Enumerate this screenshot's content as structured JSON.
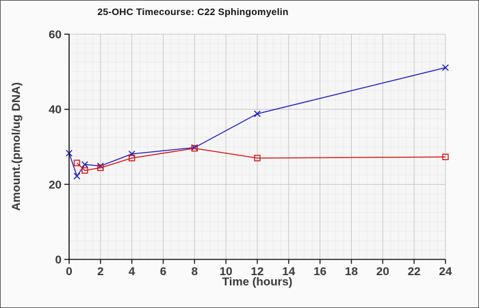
{
  "chart_data": {
    "type": "line",
    "title": "25-OHC Timecourse: C22 Sphingomyelin",
    "xlabel": "Time (hours)",
    "ylabel": "Amount.(pmol/ug DNA)",
    "xlim": [
      0,
      24
    ],
    "ylim": [
      0,
      60
    ],
    "x_tick_values": [
      0,
      2,
      4,
      6,
      8,
      10,
      12,
      14,
      16,
      18,
      20,
      22,
      24
    ],
    "x_tick_labels": [
      "0",
      "2",
      "4",
      "6",
      "8",
      "10",
      "12",
      "14",
      "16",
      "18",
      "20",
      "22",
      "24"
    ],
    "y_tick_values": [
      0,
      20,
      40,
      60
    ],
    "y_tick_labels": [
      "0",
      "20",
      "40",
      "60"
    ],
    "x_minor_step": 0.5,
    "x_major_step": 2,
    "y_minor_step": 2.5,
    "y_major_step": 20,
    "grid": true,
    "legend": false,
    "series": [
      {
        "name": "blue-x-series",
        "marker": "x",
        "color": "#2020b8",
        "x": [
          0,
          0.5,
          1,
          2,
          4,
          8,
          12,
          24
        ],
        "y": [
          28.3,
          22.2,
          25.3,
          24.9,
          28.1,
          29.8,
          38.8,
          51.1
        ]
      },
      {
        "name": "red-square-series",
        "marker": "square",
        "color": "#d41414",
        "x": [
          0.5,
          1,
          2,
          4,
          8,
          12,
          24
        ],
        "y": [
          25.7,
          23.7,
          24.4,
          27.0,
          29.6,
          27.0,
          27.3
        ]
      }
    ],
    "style": {
      "figure_bg": "#fafafa",
      "plot_bg": "#f6f6f6",
      "grid_minor_color": "#ececec",
      "grid_major_color": "#c6c6c6",
      "axis_color": "#1a1a1a",
      "tick_label_color": "#3a3a3a"
    }
  }
}
